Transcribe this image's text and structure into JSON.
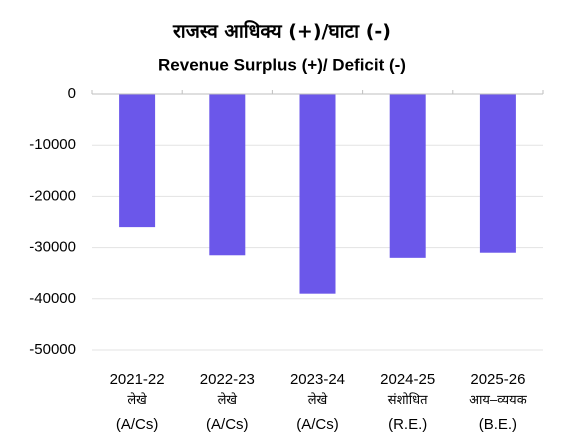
{
  "chart_data": {
    "type": "bar",
    "title": "राजस्व आधिक्य (+)/घाटा (-)",
    "subtitle": "Revenue Surplus (+)/ Deficit (-)",
    "categories": [
      "2021-22\nलेखे\n(A/Cs)",
      "2022-23\nलेखे\n(A/Cs)",
      "2023-24\nलेखे\n(A/Cs)",
      "2024-25\nसंशोधित\n(R.E.)",
      "2025-26\nआय–व्ययक\n(B.E.)"
    ],
    "values": [
      -26000,
      -31500,
      -39000,
      -32000,
      -31000
    ],
    "color": "#6b57ea",
    "ylim": [
      -50000,
      0
    ],
    "yticks": [
      0,
      -10000,
      -20000,
      -30000,
      -40000,
      -50000
    ],
    "grid": true
  }
}
